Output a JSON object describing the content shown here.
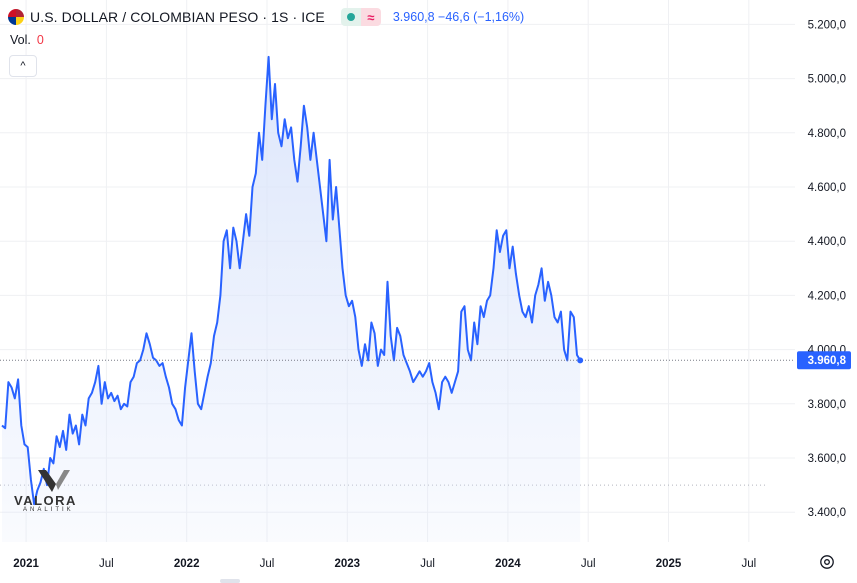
{
  "header": {
    "title": "U.S. DOLLAR / COLOMBIAN PESO · 1S · ICE",
    "price_info": "3.960,8 −46,6 (−1,16%)",
    "pill_equal_label": "≈"
  },
  "volume": {
    "label": "Vol.",
    "value": "0"
  },
  "collapse_glyph": "^",
  "logo": {
    "wordmark": "VALORA",
    "sub": "ANALITIK"
  },
  "colors": {
    "line": "#2962ff",
    "area": "#dbe5fb",
    "last_label_bg": "#2962ff",
    "grid": "#eff0f3"
  },
  "chart_data": {
    "type": "area",
    "title": "U.S. DOLLAR / COLOMBIAN PESO · 1S · ICE",
    "xlabel": "",
    "ylabel": "",
    "xlim": [
      2020.85,
      2025.8
    ],
    "ylim": [
      3290,
      5290
    ],
    "grid": true,
    "y_ticks": [
      5200,
      5000,
      4800,
      4600,
      4400,
      4200,
      4000,
      3800,
      3600,
      3400
    ],
    "y_tick_labels": [
      "5.200,0",
      "5.000,0",
      "4.800,0",
      "4.600,0",
      "4.400,0",
      "4.200,0",
      "4.000,0",
      "3.800,0",
      "3.600,0",
      "3.400,0"
    ],
    "x_ticks": [
      {
        "t": 2021.0,
        "label": "2021",
        "major": true
      },
      {
        "t": 2021.5,
        "label": "Jul",
        "major": false
      },
      {
        "t": 2022.0,
        "label": "2022",
        "major": true
      },
      {
        "t": 2022.5,
        "label": "Jul",
        "major": false
      },
      {
        "t": 2023.0,
        "label": "2023",
        "major": true
      },
      {
        "t": 2023.5,
        "label": "Jul",
        "major": false
      },
      {
        "t": 2024.0,
        "label": "2024",
        "major": true
      },
      {
        "t": 2024.5,
        "label": "Jul",
        "major": false
      },
      {
        "t": 2025.0,
        "label": "2025",
        "major": true
      },
      {
        "t": 2025.5,
        "label": "Jul",
        "major": false
      }
    ],
    "last_value": 3960.8,
    "last_value_label": "3.960,8",
    "reference_level": 3500,
    "series": [
      {
        "name": "USD/COP",
        "points": [
          [
            2020.85,
            3720
          ],
          [
            2020.87,
            3710
          ],
          [
            2020.89,
            3880
          ],
          [
            2020.91,
            3860
          ],
          [
            2020.93,
            3820
          ],
          [
            2020.95,
            3890
          ],
          [
            2020.97,
            3720
          ],
          [
            2020.99,
            3650
          ],
          [
            2021.01,
            3640
          ],
          [
            2021.03,
            3520
          ],
          [
            2021.05,
            3430
          ],
          [
            2021.07,
            3480
          ],
          [
            2021.09,
            3510
          ],
          [
            2021.11,
            3560
          ],
          [
            2021.13,
            3500
          ],
          [
            2021.15,
            3600
          ],
          [
            2021.17,
            3580
          ],
          [
            2021.19,
            3680
          ],
          [
            2021.21,
            3640
          ],
          [
            2021.23,
            3700
          ],
          [
            2021.25,
            3630
          ],
          [
            2021.27,
            3760
          ],
          [
            2021.29,
            3690
          ],
          [
            2021.31,
            3720
          ],
          [
            2021.33,
            3650
          ],
          [
            2021.35,
            3760
          ],
          [
            2021.37,
            3720
          ],
          [
            2021.39,
            3820
          ],
          [
            2021.41,
            3840
          ],
          [
            2021.43,
            3880
          ],
          [
            2021.45,
            3940
          ],
          [
            2021.47,
            3800
          ],
          [
            2021.49,
            3880
          ],
          [
            2021.51,
            3820
          ],
          [
            2021.53,
            3840
          ],
          [
            2021.55,
            3810
          ],
          [
            2021.57,
            3830
          ],
          [
            2021.59,
            3780
          ],
          [
            2021.61,
            3800
          ],
          [
            2021.63,
            3790
          ],
          [
            2021.65,
            3880
          ],
          [
            2021.67,
            3900
          ],
          [
            2021.69,
            3950
          ],
          [
            2021.71,
            3960
          ],
          [
            2021.73,
            4000
          ],
          [
            2021.75,
            4060
          ],
          [
            2021.77,
            4020
          ],
          [
            2021.79,
            3970
          ],
          [
            2021.81,
            3960
          ],
          [
            2021.83,
            3940
          ],
          [
            2021.85,
            3950
          ],
          [
            2021.87,
            3900
          ],
          [
            2021.89,
            3860
          ],
          [
            2021.91,
            3800
          ],
          [
            2021.93,
            3780
          ],
          [
            2021.95,
            3740
          ],
          [
            2021.97,
            3720
          ],
          [
            2021.99,
            3860
          ],
          [
            2022.01,
            3960
          ],
          [
            2022.03,
            4060
          ],
          [
            2022.05,
            3920
          ],
          [
            2022.07,
            3800
          ],
          [
            2022.09,
            3780
          ],
          [
            2022.11,
            3840
          ],
          [
            2022.13,
            3900
          ],
          [
            2022.15,
            3950
          ],
          [
            2022.17,
            4050
          ],
          [
            2022.19,
            4100
          ],
          [
            2022.21,
            4200
          ],
          [
            2022.23,
            4400
          ],
          [
            2022.25,
            4440
          ],
          [
            2022.27,
            4300
          ],
          [
            2022.29,
            4450
          ],
          [
            2022.31,
            4400
          ],
          [
            2022.33,
            4300
          ],
          [
            2022.35,
            4400
          ],
          [
            2022.37,
            4500
          ],
          [
            2022.39,
            4420
          ],
          [
            2022.41,
            4600
          ],
          [
            2022.43,
            4650
          ],
          [
            2022.45,
            4800
          ],
          [
            2022.47,
            4700
          ],
          [
            2022.49,
            4900
          ],
          [
            2022.51,
            5080
          ],
          [
            2022.53,
            4850
          ],
          [
            2022.55,
            4980
          ],
          [
            2022.57,
            4800
          ],
          [
            2022.59,
            4750
          ],
          [
            2022.61,
            4850
          ],
          [
            2022.63,
            4780
          ],
          [
            2022.65,
            4820
          ],
          [
            2022.67,
            4700
          ],
          [
            2022.69,
            4620
          ],
          [
            2022.71,
            4750
          ],
          [
            2022.73,
            4900
          ],
          [
            2022.75,
            4820
          ],
          [
            2022.77,
            4700
          ],
          [
            2022.79,
            4800
          ],
          [
            2022.81,
            4700
          ],
          [
            2022.83,
            4600
          ],
          [
            2022.85,
            4500
          ],
          [
            2022.87,
            4400
          ],
          [
            2022.89,
            4700
          ],
          [
            2022.91,
            4480
          ],
          [
            2022.93,
            4600
          ],
          [
            2022.95,
            4450
          ],
          [
            2022.97,
            4300
          ],
          [
            2022.99,
            4200
          ],
          [
            2023.01,
            4160
          ],
          [
            2023.03,
            4180
          ],
          [
            2023.05,
            4120
          ],
          [
            2023.07,
            4000
          ],
          [
            2023.09,
            3940
          ],
          [
            2023.11,
            4020
          ],
          [
            2023.13,
            3960
          ],
          [
            2023.15,
            4100
          ],
          [
            2023.17,
            4060
          ],
          [
            2023.19,
            3940
          ],
          [
            2023.21,
            4000
          ],
          [
            2023.23,
            3980
          ],
          [
            2023.25,
            4250
          ],
          [
            2023.27,
            4050
          ],
          [
            2023.29,
            3960
          ],
          [
            2023.31,
            4080
          ],
          [
            2023.33,
            4050
          ],
          [
            2023.35,
            3980
          ],
          [
            2023.37,
            3950
          ],
          [
            2023.39,
            3920
          ],
          [
            2023.41,
            3880
          ],
          [
            2023.43,
            3900
          ],
          [
            2023.45,
            3920
          ],
          [
            2023.47,
            3900
          ],
          [
            2023.49,
            3920
          ],
          [
            2023.51,
            3950
          ],
          [
            2023.53,
            3880
          ],
          [
            2023.55,
            3840
          ],
          [
            2023.57,
            3780
          ],
          [
            2023.59,
            3880
          ],
          [
            2023.61,
            3900
          ],
          [
            2023.63,
            3880
          ],
          [
            2023.65,
            3840
          ],
          [
            2023.67,
            3880
          ],
          [
            2023.69,
            3920
          ],
          [
            2023.71,
            4140
          ],
          [
            2023.73,
            4160
          ],
          [
            2023.75,
            4000
          ],
          [
            2023.77,
            3960
          ],
          [
            2023.79,
            4100
          ],
          [
            2023.81,
            4020
          ],
          [
            2023.83,
            4160
          ],
          [
            2023.85,
            4120
          ],
          [
            2023.87,
            4180
          ],
          [
            2023.89,
            4200
          ],
          [
            2023.91,
            4300
          ],
          [
            2023.93,
            4440
          ],
          [
            2023.95,
            4360
          ],
          [
            2023.97,
            4420
          ],
          [
            2023.99,
            4440
          ],
          [
            2024.01,
            4300
          ],
          [
            2024.03,
            4380
          ],
          [
            2024.05,
            4280
          ],
          [
            2024.07,
            4200
          ],
          [
            2024.09,
            4140
          ],
          [
            2024.11,
            4120
          ],
          [
            2024.13,
            4160
          ],
          [
            2024.15,
            4100
          ],
          [
            2024.17,
            4200
          ],
          [
            2024.19,
            4240
          ],
          [
            2024.21,
            4300
          ],
          [
            2024.23,
            4180
          ],
          [
            2024.25,
            4250
          ],
          [
            2024.27,
            4200
          ],
          [
            2024.29,
            4120
          ],
          [
            2024.31,
            4100
          ],
          [
            2024.33,
            4140
          ],
          [
            2024.35,
            4000
          ],
          [
            2024.37,
            3960
          ],
          [
            2024.39,
            4140
          ],
          [
            2024.41,
            4120
          ],
          [
            2024.43,
            3980
          ],
          [
            2024.45,
            3960
          ]
        ]
      }
    ]
  }
}
